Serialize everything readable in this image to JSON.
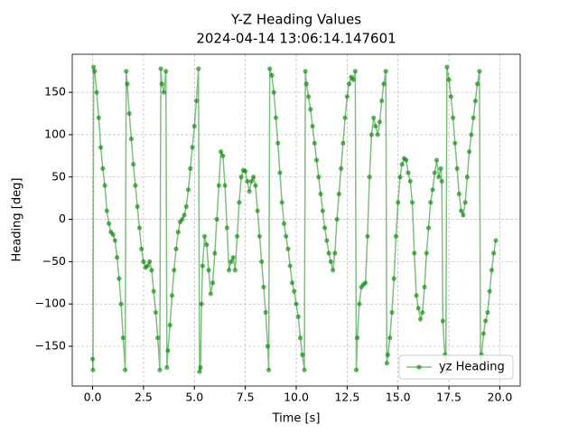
{
  "chart_data": {
    "type": "line",
    "title": "Y-Z Heading Values",
    "subtitle": "2024-04-14 13:06:14.147601",
    "xlabel": "Time [s]",
    "ylabel": "Heading [deg]",
    "xlim": [
      -1.0,
      21.0
    ],
    "ylim": [
      -197,
      195
    ],
    "xticks": [
      {
        "value": 0,
        "label": "0.0"
      },
      {
        "value": 2.5,
        "label": "2.5"
      },
      {
        "value": 5,
        "label": "5.0"
      },
      {
        "value": 7.5,
        "label": "7.5"
      },
      {
        "value": 10,
        "label": "10.0"
      },
      {
        "value": 12.5,
        "label": "12.5"
      },
      {
        "value": 15,
        "label": "15.0"
      },
      {
        "value": 17.5,
        "label": "17.5"
      },
      {
        "value": 20,
        "label": "20.0"
      }
    ],
    "yticks": [
      {
        "value": -150,
        "label": "−150"
      },
      {
        "value": -100,
        "label": "−100"
      },
      {
        "value": -50,
        "label": "−50"
      },
      0,
      50,
      100,
      150
    ],
    "grid": true,
    "legend": "lower right",
    "x": [
      0.0,
      0.02,
      0.05,
      0.1,
      0.2,
      0.3,
      0.4,
      0.5,
      0.6,
      0.7,
      0.8,
      0.9,
      1.0,
      1.1,
      1.2,
      1.3,
      1.4,
      1.5,
      1.6,
      1.65,
      1.7,
      1.8,
      1.9,
      2.0,
      2.1,
      2.2,
      2.3,
      2.4,
      2.5,
      2.6,
      2.7,
      2.8,
      2.9,
      3.0,
      3.1,
      3.2,
      3.3,
      3.35,
      3.4,
      3.5,
      3.6,
      3.65,
      3.7,
      3.8,
      3.9,
      4.0,
      4.1,
      4.2,
      4.3,
      4.4,
      4.5,
      4.6,
      4.7,
      4.8,
      4.9,
      5.0,
      5.1,
      5.2,
      5.25,
      5.3,
      5.35,
      5.4,
      5.5,
      5.6,
      5.7,
      5.8,
      5.9,
      6.0,
      6.1,
      6.2,
      6.3,
      6.4,
      6.5,
      6.6,
      6.7,
      6.8,
      6.9,
      7.0,
      7.1,
      7.2,
      7.3,
      7.4,
      7.5,
      7.6,
      7.7,
      7.8,
      7.9,
      8.0,
      8.1,
      8.2,
      8.3,
      8.4,
      8.5,
      8.6,
      8.65,
      8.7,
      8.8,
      8.9,
      9.0,
      9.1,
      9.2,
      9.3,
      9.4,
      9.5,
      9.6,
      9.7,
      9.8,
      9.9,
      10.0,
      10.1,
      10.2,
      10.3,
      10.4,
      10.45,
      10.5,
      10.6,
      10.7,
      10.8,
      10.9,
      11.0,
      11.1,
      11.2,
      11.3,
      11.4,
      11.5,
      11.6,
      11.7,
      11.8,
      11.9,
      12.0,
      12.1,
      12.2,
      12.3,
      12.4,
      12.5,
      12.6,
      12.7,
      12.8,
      12.9,
      12.95,
      13.0,
      13.1,
      13.2,
      13.3,
      13.4,
      13.5,
      13.6,
      13.7,
      13.8,
      13.9,
      14.0,
      14.1,
      14.2,
      14.3,
      14.4,
      14.45,
      14.5,
      14.6,
      14.7,
      14.8,
      14.9,
      15.0,
      15.1,
      15.2,
      15.3,
      15.4,
      15.5,
      15.6,
      15.7,
      15.8,
      15.9,
      16.0,
      16.1,
      16.2,
      16.3,
      16.4,
      16.5,
      16.6,
      16.7,
      16.8,
      16.9,
      17.0,
      17.1,
      17.15,
      17.2,
      17.3,
      17.35,
      17.4,
      17.5,
      17.6,
      17.7,
      17.8,
      17.9,
      18.0,
      18.1,
      18.2,
      18.3,
      18.4,
      18.5,
      18.6,
      18.7,
      18.8,
      18.9,
      19.0,
      19.05,
      19.1,
      19.2,
      19.3,
      19.4,
      19.5,
      19.6,
      19.7,
      19.8
    ],
    "series": [
      {
        "name": "yz Heading",
        "color": "#008000",
        "values": [
          -165,
          -178,
          180,
          175,
          150,
          120,
          85,
          60,
          40,
          10,
          -5,
          -15,
          -18,
          -25,
          -45,
          -70,
          -100,
          -140,
          -178,
          175,
          160,
          125,
          95,
          65,
          40,
          15,
          -10,
          -35,
          -50,
          -57,
          -55,
          -50,
          -60,
          -85,
          -110,
          -140,
          -178,
          178,
          160,
          150,
          175,
          -175,
          -155,
          -125,
          -90,
          -60,
          -35,
          -15,
          -3,
          0,
          5,
          15,
          35,
          60,
          85,
          110,
          140,
          178,
          -180,
          -175,
          -100,
          -55,
          -20,
          -30,
          -60,
          -88,
          -75,
          -40,
          0,
          40,
          80,
          75,
          40,
          -10,
          -60,
          -50,
          -45,
          -60,
          -20,
          20,
          50,
          58,
          57,
          45,
          33,
          45,
          50,
          40,
          10,
          -20,
          -50,
          -80,
          -110,
          -150,
          -178,
          178,
          170,
          150,
          120,
          90,
          55,
          20,
          -5,
          -20,
          -35,
          -55,
          -75,
          -85,
          -100,
          -115,
          -140,
          -160,
          -178,
          175,
          160,
          145,
          130,
          110,
          90,
          70,
          50,
          30,
          10,
          -10,
          -25,
          -40,
          -50,
          -60,
          -40,
          0,
          30,
          60,
          90,
          120,
          145,
          160,
          168,
          165,
          175,
          -178,
          -140,
          -100,
          -80,
          -77,
          -75,
          -20,
          50,
          100,
          120,
          110,
          100,
          115,
          140,
          160,
          175,
          -170,
          -160,
          -140,
          -110,
          -70,
          -20,
          20,
          50,
          65,
          72,
          70,
          55,
          45,
          20,
          -40,
          -90,
          -105,
          -118,
          -110,
          -80,
          -40,
          -10,
          20,
          35,
          55,
          70,
          50,
          60,
          45,
          -120,
          -160,
          -180,
          180,
          165,
          145,
          120,
          90,
          60,
          30,
          10,
          5,
          20,
          50,
          80,
          100,
          120,
          140,
          160,
          175,
          -178,
          -160,
          -135,
          -120,
          -110,
          -85,
          -60,
          -40,
          -25
        ]
      }
    ]
  }
}
